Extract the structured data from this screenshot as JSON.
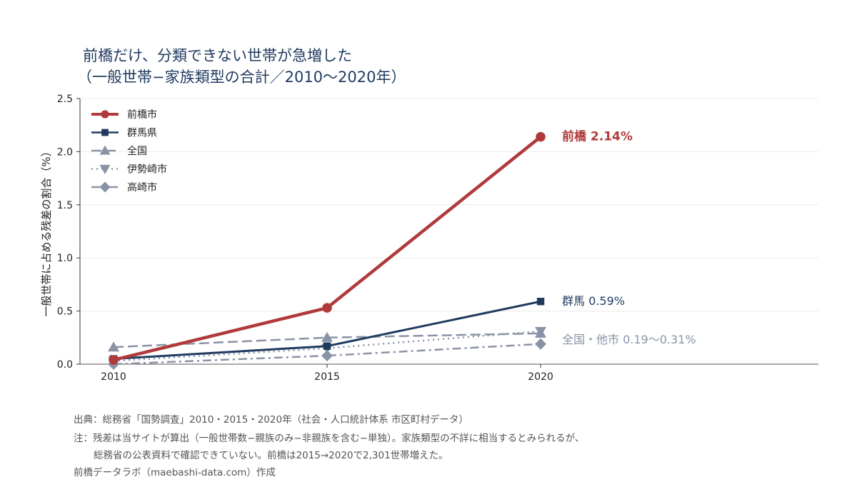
{
  "title": {
    "line1": "前橋だけ、分類できない世帯が急増した",
    "line2": "（一般世帯−家族類型の合計／2010〜2020年）"
  },
  "chart_data": {
    "type": "line",
    "x": [
      2010,
      2015,
      2020
    ],
    "xticks": [
      "2010",
      "2015",
      "2020"
    ],
    "ylabel": "一般世帯に占める残差の割合（%）",
    "ylim": [
      0,
      2.5
    ],
    "yticks": [
      "0.0",
      "0.5",
      "1.0",
      "1.5",
      "2.0",
      "2.5"
    ],
    "grid": true,
    "legend_position": "top-left",
    "series": [
      {
        "name": "前橋市",
        "values": [
          0.04,
          0.53,
          2.14
        ],
        "color": "#b03a3a",
        "style": "solid",
        "marker": "circle"
      },
      {
        "name": "群馬県",
        "values": [
          0.05,
          0.17,
          0.59
        ],
        "color": "#1f3a5f",
        "style": "solid",
        "marker": "square"
      },
      {
        "name": "全国",
        "values": [
          0.16,
          0.25,
          0.29
        ],
        "color": "#8a93a6",
        "style": "dashed",
        "marker": "triangle-up"
      },
      {
        "name": "伊勢崎市",
        "values": [
          0.03,
          0.15,
          0.31
        ],
        "color": "#8a93a6",
        "style": "dotted",
        "marker": "triangle-down"
      },
      {
        "name": "高崎市",
        "values": [
          0.0,
          0.08,
          0.19
        ],
        "color": "#8a93a6",
        "style": "dashdot",
        "marker": "diamond"
      }
    ],
    "annotations": [
      {
        "text": "前橋 2.14%",
        "color": "#b03a3a",
        "bold": true
      },
      {
        "text": "群馬 0.59%",
        "color": "#1f3a5f",
        "bold": false
      },
      {
        "text": "全国・他市 0.19〜0.31%",
        "color": "#8a93a6",
        "bold": false
      }
    ]
  },
  "notes": {
    "source": "出典：総務省「国勢調査」2010・2015・2020年（社会・人口統計体系 市区町村データ）",
    "note1": "注：残差は当サイトが算出（一般世帯数−親族のみ−非親族を含む−単独）。家族類型の不詳に相当するとみられるが、",
    "note2": "総務省の公表資料で確認できていない。前橋は2015→2020で2,301世帯増えた。",
    "credit": "前橋データラボ（maebashi-data.com）作成"
  }
}
